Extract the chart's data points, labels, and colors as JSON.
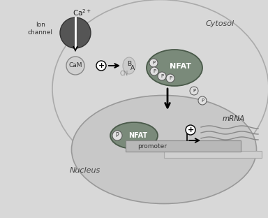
{
  "bg_color": "#d8d8d8",
  "cell_fc": "#d8d8d8",
  "cell_ec": "#aaaaaa",
  "nucleus_fc": "#c4c4c4",
  "nucleus_ec": "#999999",
  "nfat_fc": "#7a8a7a",
  "nfat_ec": "#4a5a4a",
  "ion_fc": "#555555",
  "ion_ec": "#333333",
  "cam_fc": "#d0d0d0",
  "cam_ec": "#888888",
  "cn_fc": "#cccccc",
  "cn_ec": "#aaaaaa",
  "p_fc": "#e0e0e0",
  "p_ec": "#555555",
  "plus_fc": "#ffffff",
  "prom_fc": "#b8b8b8",
  "prom_ec": "#888888",
  "cytosol_label": "Cytosol",
  "nucleus_label": "Nucleus",
  "ion_label": "Ion\nchannel",
  "ca2_label": "Ca$^{2+}$",
  "cam_label": "CaM",
  "b_label": "B",
  "a_label": "A",
  "cn_label": "CN",
  "nfat_label": "NFAT",
  "promoter_label": "promoter",
  "mrna_label": "mRNA"
}
